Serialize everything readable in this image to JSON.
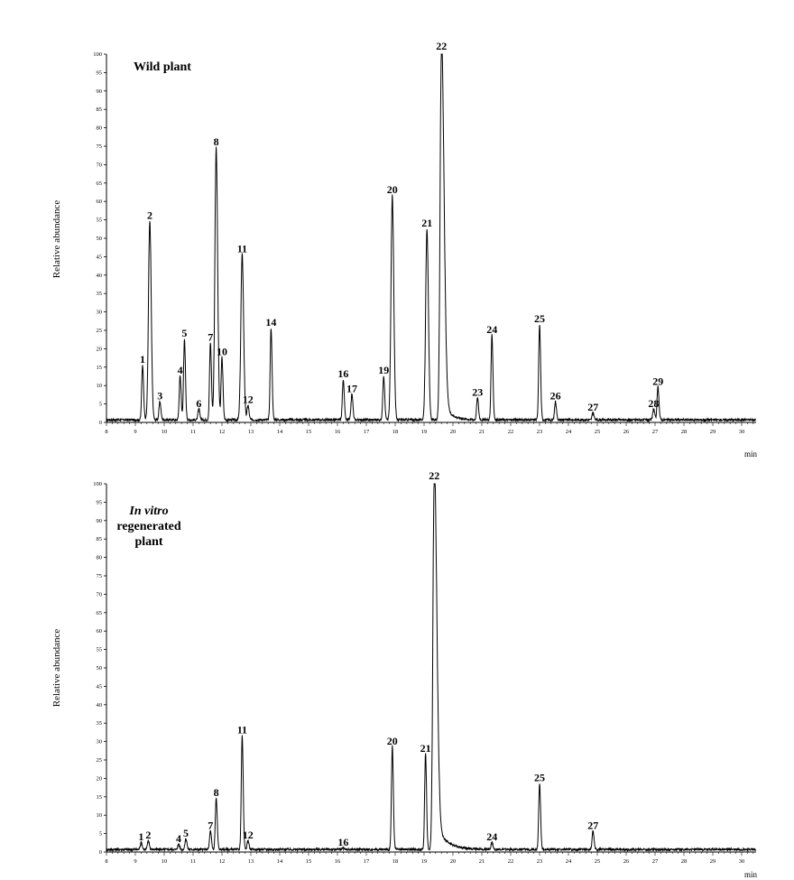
{
  "chart_data": [
    {
      "type": "line",
      "title": "Wild plant",
      "title_italic": "",
      "xlabel": "min",
      "ylabel": "Relative abundance",
      "xlim": [
        8,
        30.5
      ],
      "ylim": [
        0,
        100
      ],
      "x_ticks": [
        8,
        9,
        10,
        11,
        12,
        13,
        14,
        15,
        16,
        17,
        18,
        19,
        20,
        21,
        22,
        23,
        24,
        25,
        26,
        27,
        28,
        29,
        30
      ],
      "y_ticks": [
        0,
        5,
        10,
        15,
        20,
        25,
        30,
        35,
        40,
        45,
        50,
        55,
        60,
        65,
        70,
        75,
        80,
        85,
        90,
        95,
        100
      ],
      "peaks": [
        {
          "label": "1",
          "rt": 9.25,
          "height": 15
        },
        {
          "label": "2",
          "rt": 9.5,
          "height": 54
        },
        {
          "label": "3",
          "rt": 9.85,
          "height": 5
        },
        {
          "label": "4",
          "rt": 10.55,
          "height": 12
        },
        {
          "label": "5",
          "rt": 10.7,
          "height": 22
        },
        {
          "label": "6",
          "rt": 11.2,
          "height": 3
        },
        {
          "label": "7",
          "rt": 11.6,
          "height": 21
        },
        {
          "label": "8",
          "rt": 11.8,
          "height": 74
        },
        {
          "label": "10",
          "rt": 12.0,
          "height": 17
        },
        {
          "label": "11",
          "rt": 12.7,
          "height": 45
        },
        {
          "label": "12",
          "rt": 12.9,
          "height": 4
        },
        {
          "label": "14",
          "rt": 13.7,
          "height": 25
        },
        {
          "label": "16",
          "rt": 16.2,
          "height": 11
        },
        {
          "label": "17",
          "rt": 16.5,
          "height": 7
        },
        {
          "label": "19",
          "rt": 17.6,
          "height": 12
        },
        {
          "label": "20",
          "rt": 17.9,
          "height": 61
        },
        {
          "label": "21",
          "rt": 19.1,
          "height": 52
        },
        {
          "label": "22",
          "rt": 19.6,
          "height": 100
        },
        {
          "label": "23",
          "rt": 20.85,
          "height": 6
        },
        {
          "label": "24",
          "rt": 21.35,
          "height": 23
        },
        {
          "label": "25",
          "rt": 23.0,
          "height": 26
        },
        {
          "label": "26",
          "rt": 23.55,
          "height": 5
        },
        {
          "label": "27",
          "rt": 24.85,
          "height": 2
        },
        {
          "label": "28",
          "rt": 26.95,
          "height": 3
        },
        {
          "label": "29",
          "rt": 27.1,
          "height": 9
        }
      ]
    },
    {
      "type": "line",
      "title": "regenerated plant",
      "title_italic": "In vitro",
      "xlabel": "min",
      "ylabel": "Relative abundance",
      "xlim": [
        8,
        30.5
      ],
      "ylim": [
        0,
        100
      ],
      "x_ticks": [
        8,
        9,
        10,
        11,
        12,
        13,
        14,
        15,
        16,
        17,
        18,
        19,
        20,
        21,
        22,
        23,
        24,
        25,
        26,
        27,
        28,
        29,
        30
      ],
      "y_ticks": [
        0,
        5,
        10,
        15,
        20,
        25,
        30,
        35,
        40,
        45,
        50,
        55,
        60,
        65,
        70,
        75,
        80,
        85,
        90,
        95,
        100
      ],
      "peaks": [
        {
          "label": "1",
          "rt": 9.2,
          "height": 2
        },
        {
          "label": "2",
          "rt": 9.45,
          "height": 2.5
        },
        {
          "label": "4",
          "rt": 10.5,
          "height": 1.5
        },
        {
          "label": "5",
          "rt": 10.75,
          "height": 3
        },
        {
          "label": "7",
          "rt": 11.6,
          "height": 5
        },
        {
          "label": "8",
          "rt": 11.8,
          "height": 14
        },
        {
          "label": "11",
          "rt": 12.7,
          "height": 31
        },
        {
          "label": "12",
          "rt": 12.9,
          "height": 2.5
        },
        {
          "label": "16",
          "rt": 16.2,
          "height": 0.5
        },
        {
          "label": "20",
          "rt": 17.9,
          "height": 28
        },
        {
          "label": "21",
          "rt": 19.05,
          "height": 26
        },
        {
          "label": "22",
          "rt": 19.35,
          "height": 100
        },
        {
          "label": "24",
          "rt": 21.35,
          "height": 2
        },
        {
          "label": "25",
          "rt": 23.0,
          "height": 18
        },
        {
          "label": "27",
          "rt": 24.85,
          "height": 5
        }
      ]
    }
  ]
}
